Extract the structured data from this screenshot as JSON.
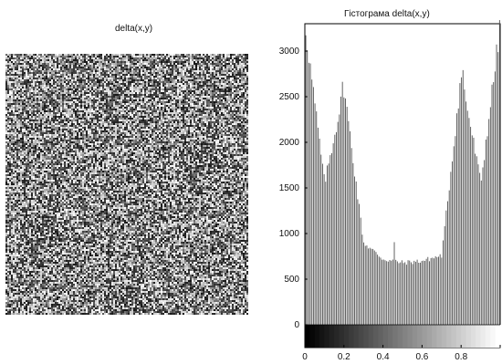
{
  "left_panel": {
    "title": "delta(x,y)",
    "image": "random-noise"
  },
  "chart_data": {
    "type": "bar",
    "title": "Гістограма delta(x,y)",
    "xlabel": "",
    "ylabel": "",
    "xlim": [
      0,
      1
    ],
    "ylim": [
      0,
      3300
    ],
    "y_ticks": [
      0,
      500,
      1000,
      1500,
      2000,
      2500,
      3000
    ],
    "x_ticks": [
      0,
      0.2,
      0.4,
      0.6,
      0.8,
      1
    ],
    "x_tick_labels": [
      "0",
      "0.2",
      "0.4",
      "0.6",
      "0.8",
      ""
    ],
    "grid": false,
    "colorbar": "grayscale",
    "bin_count": 128,
    "x": [
      0.0,
      0.1,
      0.2,
      0.3,
      0.4,
      0.5,
      0.6,
      0.7,
      0.8,
      0.9,
      1.0
    ],
    "values": [
      3300,
      1550,
      2600,
      900,
      720,
      680,
      700,
      760,
      2750,
      1550,
      3300
    ],
    "spikes": [
      {
        "x": 0.19,
        "value": 2600
      },
      {
        "x": 0.81,
        "value": 2750
      },
      {
        "x": 0.46,
        "value": 900
      }
    ]
  }
}
